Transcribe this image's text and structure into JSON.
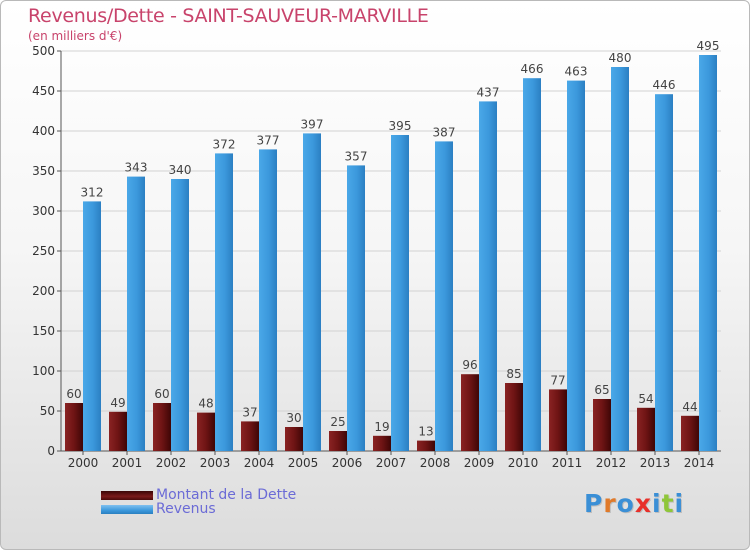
{
  "title": "Revenus/Dette - SAINT-SAUVEUR-MARVILLE",
  "subtitle": "(en milliers d'€)",
  "chart_data": {
    "type": "bar",
    "title": "Revenus/Dette - SAINT-SAUVEUR-MARVILLE",
    "ylabel": "(en milliers d'€)",
    "categories": [
      "2000",
      "2001",
      "2002",
      "2003",
      "2004",
      "2005",
      "2006",
      "2007",
      "2008",
      "2009",
      "2010",
      "2011",
      "2012",
      "2013",
      "2014"
    ],
    "series": [
      {
        "name": "Montant de la Dette",
        "color": "#7a1a1a",
        "values": [
          60,
          49,
          60,
          48,
          37,
          30,
          25,
          19,
          13,
          96,
          85,
          77,
          65,
          54,
          44
        ]
      },
      {
        "name": "Revenus",
        "color": "#3b98dc",
        "values": [
          312,
          343,
          340,
          372,
          377,
          397,
          357,
          395,
          387,
          437,
          466,
          463,
          480,
          446,
          495
        ]
      }
    ],
    "ylim": [
      0,
      500
    ],
    "yticks": [
      0,
      50,
      100,
      150,
      200,
      250,
      300,
      350,
      400,
      450,
      500
    ],
    "grid": true,
    "legend": "bottom-left"
  },
  "legend": {
    "debt_label": "Montant de la Dette",
    "revenue_label": "Revenus"
  },
  "logo": {
    "text": "Proxiti",
    "colors": [
      "#3a8fd6",
      "#e07a2a",
      "#3a8fd6",
      "#e8302a",
      "#3a8fd6",
      "#8fc63a",
      "#3a8fd6"
    ]
  }
}
